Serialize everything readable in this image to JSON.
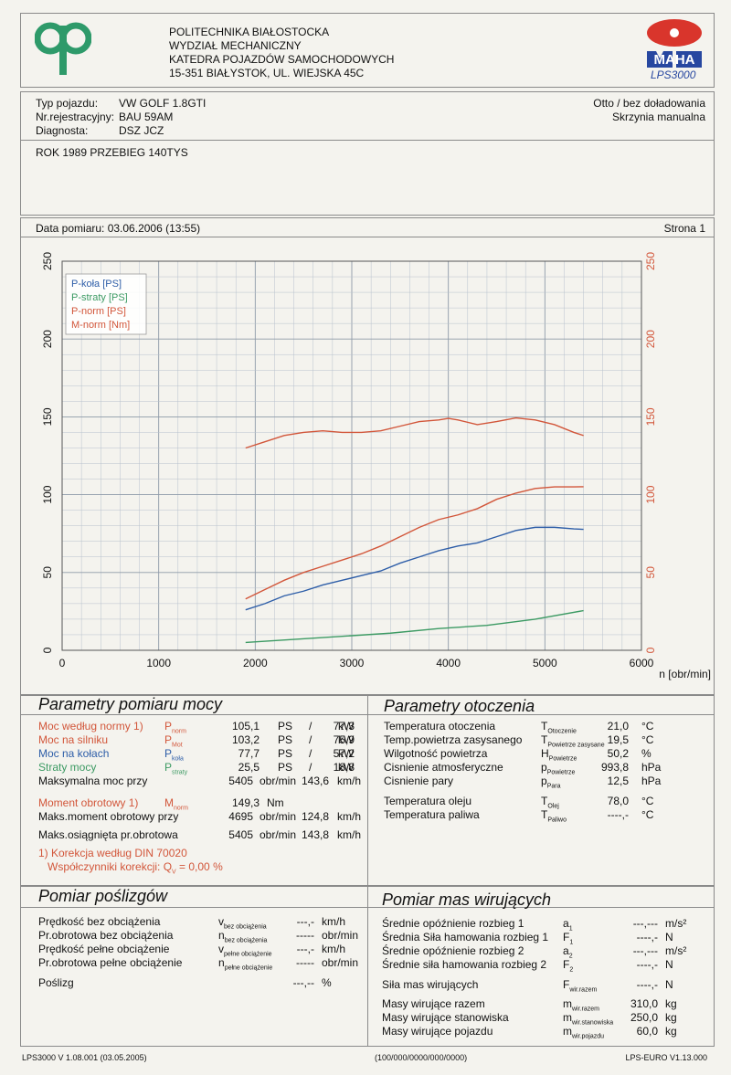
{
  "header": {
    "org_lines": [
      "POLITECHNIKA BIAŁOSTOCKA",
      "WYDZIAŁ MECHANICZNY",
      "KATEDRA POJAZDÓW SAMOCHODOWYCH",
      "15-351 BIAŁYSTOK, UL. WIEJSKA 45C"
    ],
    "brand": "MAHA",
    "model": "LPS3000"
  },
  "vehicle": {
    "type_label": "Typ pojazdu:",
    "type_value": "VW GOLF 1.8GTI",
    "reg_label": "Nr.rejestracyjny:",
    "reg_value": "BAU 59AM",
    "diag_label": "Diagnosta:",
    "diag_value": "DSZ JCZ",
    "engine": "Otto / bez doładowania",
    "gearbox": "Skrzynia manualna",
    "note": "ROK 1989 PRZEBIEG 140TYS"
  },
  "measure": {
    "date": "Data pomiaru: 03.06.2006 (13:55)",
    "page": "Strona 1"
  },
  "chart_data": {
    "type": "line",
    "xlabel": "n [obr/min]",
    "xlim": [
      0,
      6000
    ],
    "ylim": [
      0,
      250
    ],
    "x_ticks": [
      0,
      1000,
      2000,
      3000,
      4000,
      5000,
      6000
    ],
    "y_ticks": [
      0,
      50,
      100,
      150,
      200,
      250
    ],
    "grid": true,
    "legend": "top-left",
    "series": [
      {
        "name": "P-koła [PS]",
        "color": "#2e5ea8",
        "x": [
          1900,
          2100,
          2300,
          2500,
          2700,
          2900,
          3100,
          3300,
          3500,
          3700,
          3900,
          4100,
          4300,
          4500,
          4700,
          4900,
          5100,
          5300,
          5400
        ],
        "y": [
          26,
          30,
          35,
          38,
          42,
          45,
          48,
          51,
          56,
          60,
          64,
          67,
          69,
          73,
          77,
          79,
          79,
          78,
          77.7
        ]
      },
      {
        "name": "P-straty [PS]",
        "color": "#3c9a63",
        "x": [
          1900,
          2400,
          2900,
          3400,
          3900,
          4400,
          4900,
          5400
        ],
        "y": [
          5,
          7,
          9,
          11,
          14,
          16,
          20,
          25.5
        ]
      },
      {
        "name": "P-norm [PS]",
        "color": "#d2563a",
        "x": [
          1900,
          2100,
          2300,
          2500,
          2700,
          2900,
          3100,
          3300,
          3500,
          3700,
          3900,
          4100,
          4300,
          4500,
          4700,
          4900,
          5100,
          5300,
          5400
        ],
        "y": [
          33,
          39,
          45,
          50,
          54,
          58,
          62,
          67,
          73,
          79,
          84,
          87,
          91,
          97,
          101,
          104,
          105,
          105,
          105.1
        ]
      },
      {
        "name": "M-norm [Nm]",
        "color": "#d2563a",
        "x": [
          1900,
          2100,
          2300,
          2500,
          2700,
          2900,
          3100,
          3300,
          3500,
          3700,
          3900,
          4000,
          4100,
          4300,
          4500,
          4700,
          4900,
          5100,
          5300,
          5400
        ],
        "y": [
          130,
          134,
          138,
          140,
          141,
          140,
          140,
          141,
          144,
          147,
          148,
          149,
          148,
          145,
          147,
          149.3,
          148,
          145,
          140,
          138
        ]
      }
    ]
  },
  "power": {
    "title": "Parametry pomiaru mocy",
    "rows": [
      {
        "label": "Moc według normy 1)",
        "sym": "P",
        "sub": "norm",
        "v1": "105,1",
        "u1": "PS",
        "sep": "/",
        "v2": "77,3",
        "u2": "kW",
        "cls": "red"
      },
      {
        "label": "Moc na silniku",
        "sym": "P",
        "sub": "Mot",
        "v1": "103,2",
        "u1": "PS",
        "sep": "/",
        "v2": "75,9",
        "u2": "kW",
        "cls": "red"
      },
      {
        "label": "Moc na kołach",
        "sym": "P",
        "sub": "koła",
        "v1": "77,7",
        "u1": "PS",
        "sep": "/",
        "v2": "57,2",
        "u2": "kW",
        "cls": "blue"
      },
      {
        "label": "Straty mocy",
        "sym": "P",
        "sub": "straty",
        "v1": "25,5",
        "u1": "PS",
        "sep": "/",
        "v2": "18,8",
        "u2": "kW",
        "cls": "green"
      }
    ],
    "max_power_label": "Maksymalna moc przy",
    "max_power_rpm": "5405",
    "max_power_rpm_unit": "obr/min",
    "max_power_speed": "143,6",
    "max_power_speed_unit": "km/h",
    "torque_label": "Moment obrotowy 1)",
    "torque_sym": "M",
    "torque_sub": "norm",
    "torque_value": "149,3",
    "torque_unit": "Nm",
    "max_torque_label": "Maks.moment obrotowy przy",
    "max_torque_rpm": "4695",
    "max_torque_rpm_unit": "obr/min",
    "max_torque_speed": "124,8",
    "max_torque_speed_unit": "km/h",
    "max_rpm_label": "Maks.osiągnięta pr.obrotowa",
    "max_rpm": "5405",
    "max_rpm_unit": "obr/min",
    "max_rpm_speed": "143,8",
    "max_rpm_speed_unit": "km/h",
    "footnote": "1) Korekcja według DIN 70020",
    "correction": "Współczynniki korekcji: Q",
    "correction_sub": "V",
    "correction_value": "= 0,00 %"
  },
  "env": {
    "title": "Parametry otoczenia",
    "rows": [
      {
        "label": "Temperatura otoczenia",
        "sym": "T",
        "sub": "Otoczenie",
        "val": "21,0",
        "unit": "°C"
      },
      {
        "label": "Temp.powietrza zasysanego",
        "sym": "T",
        "sub": "Powietrze zasysane",
        "val": "19,5",
        "unit": "°C"
      },
      {
        "label": "Wilgotność powietrza",
        "sym": "H",
        "sub": "Powietrze",
        "val": "50,2",
        "unit": "%"
      },
      {
        "label": "Cisnienie atmosferyczne",
        "sym": "p",
        "sub": "Powietrze",
        "val": "993,8",
        "unit": "hPa"
      },
      {
        "label": "Cisnienie pary",
        "sym": "p",
        "sub": "Para",
        "val": "12,5",
        "unit": "hPa"
      },
      {
        "label": "Temperatura oleju",
        "sym": "T",
        "sub": "Olej",
        "val": "78,0",
        "unit": "°C"
      },
      {
        "label": "Temperatura paliwa",
        "sym": "T",
        "sub": "Paliwo",
        "val": "----,-",
        "unit": "°C"
      }
    ]
  },
  "slip": {
    "title": "Pomiar poślizgów",
    "rows": [
      {
        "label": "Prędkość bez obciążenia",
        "sym": "v",
        "sub": "bez obciążenia",
        "val": "---,-",
        "unit": "km/h"
      },
      {
        "label": "Pr.obrotowa bez obciążenia",
        "sym": "n",
        "sub": "bez obciążenia",
        "val": "-----",
        "unit": "obr/min"
      },
      {
        "label": "Prędkość pełne obciążenie",
        "sym": "v",
        "sub": "pełne obciążenie",
        "val": "---,-",
        "unit": "km/h"
      },
      {
        "label": "Pr.obrotowa pełne obciążenie",
        "sym": "n",
        "sub": "pełne obciążenie",
        "val": "-----",
        "unit": "obr/min"
      },
      {
        "label": "Poślizg",
        "sym": "",
        "sub": "",
        "val": "---,--",
        "unit": "%"
      }
    ]
  },
  "mass": {
    "title": "Pomiar mas wirujących",
    "rows": [
      {
        "label": "Średnie opóźnienie rozbieg 1",
        "sym": "a",
        "sub": "1",
        "val": "---,---",
        "unit": "m/s²"
      },
      {
        "label": "Średnia Siła hamowania rozbieg 1",
        "sym": "F",
        "sub": "1",
        "val": "----,-",
        "unit": "N"
      },
      {
        "label": "Średnie opóźnienie rozbieg 2",
        "sym": "a",
        "sub": "2",
        "val": "---,---",
        "unit": "m/s²"
      },
      {
        "label": "Średnie siła hamowania rozbieg 2",
        "sym": "F",
        "sub": "2",
        "val": "----,-",
        "unit": "N"
      },
      {
        "label": "Siła mas wirujących",
        "sym": "F",
        "sub": "wir.razem",
        "val": "----,-",
        "unit": "N"
      },
      {
        "label": "Masy wirujące razem",
        "sym": "m",
        "sub": "wir.razem",
        "val": "310,0",
        "unit": "kg"
      },
      {
        "label": "Masy wirujące stanowiska",
        "sym": "m",
        "sub": "wir.stanowiska",
        "val": "250,0",
        "unit": "kg"
      },
      {
        "label": "Masy wirujące pojazdu",
        "sym": "m",
        "sub": "wir.pojazdu",
        "val": "60,0",
        "unit": "kg"
      }
    ]
  },
  "footer": {
    "left": "LPS3000 V 1.08.001 (03.05.2005)",
    "center": "(100/000/0000/000/0000)",
    "right": "LPS-EURO V1.13.000"
  }
}
